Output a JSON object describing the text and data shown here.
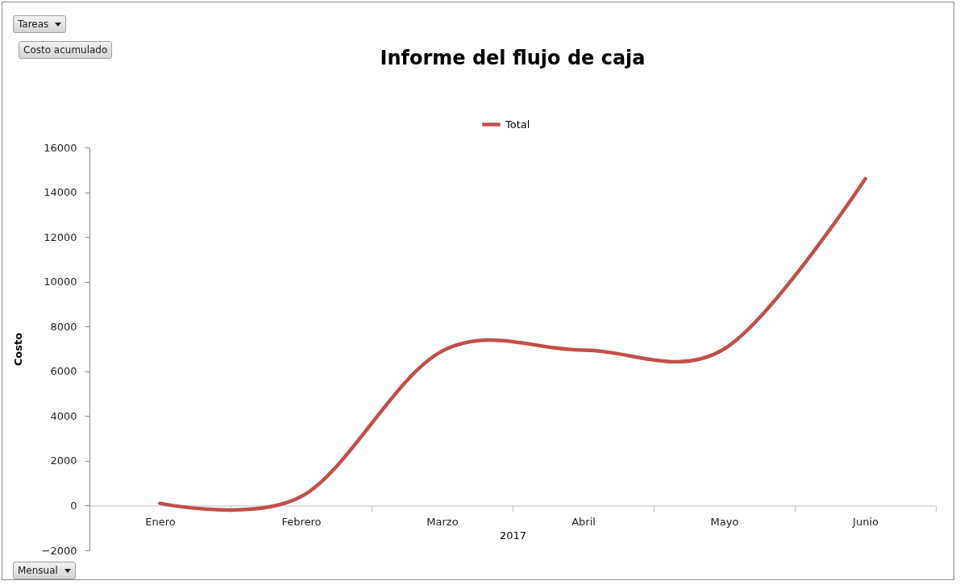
{
  "chart_data": {
    "type": "line",
    "title": "Informe del flujo de caja",
    "xlabel": "2017",
    "ylabel": "Costo",
    "categories": [
      "Enero",
      "Febrero",
      "Marzo",
      "Abril",
      "Mayo",
      "Junio"
    ],
    "series": [
      {
        "name": "Total",
        "color": "#c0504d",
        "values": [
          100,
          400,
          6900,
          6950,
          7000,
          14600
        ]
      }
    ],
    "ylim": [
      -2000,
      16000
    ],
    "yticks": [
      -2000,
      0,
      2000,
      4000,
      6000,
      8000,
      10000,
      12000,
      14000,
      16000
    ],
    "grid": false,
    "legend": "top",
    "marker": "none",
    "line_style": "solid",
    "annotations": [
      "Tareas",
      "Costo acumulado",
      "Mensual"
    ]
  }
}
